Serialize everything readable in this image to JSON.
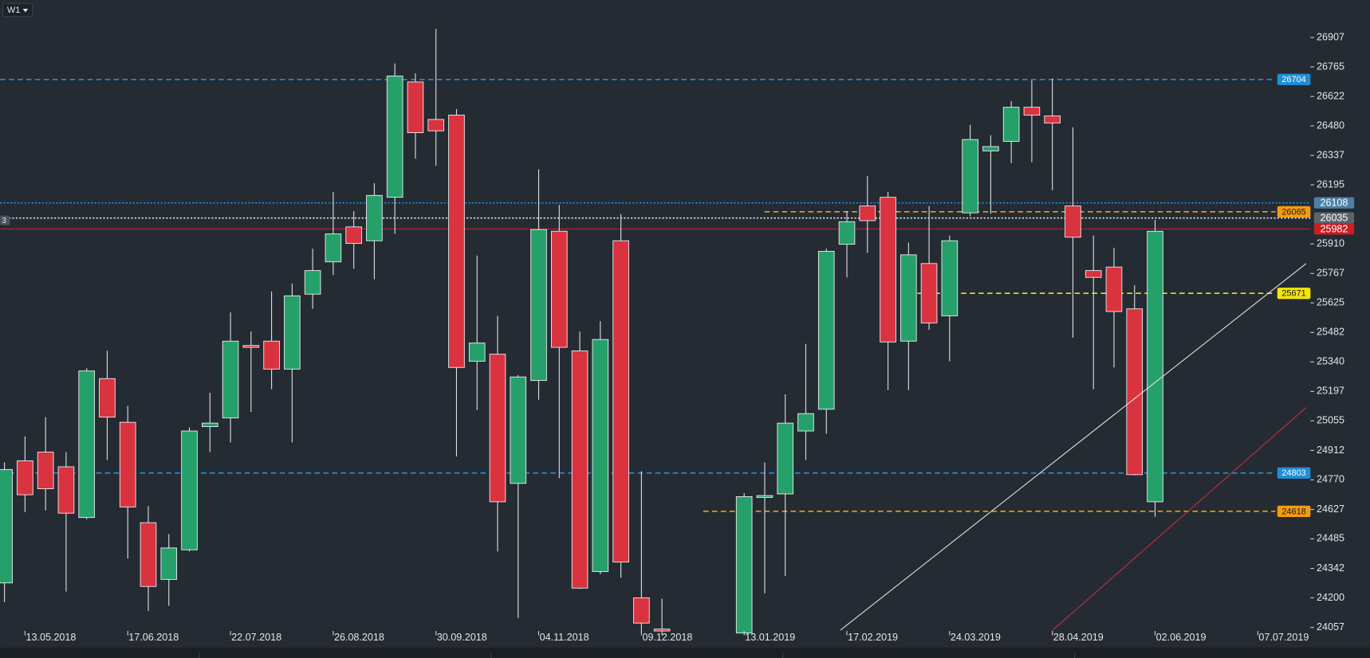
{
  "timeframe": "W1",
  "left_marker": "3",
  "chart_data": {
    "type": "candlestick",
    "categories": [
      null,
      "13.05.2018",
      null,
      null,
      null,
      null,
      "17.06.2018",
      null,
      null,
      null,
      null,
      "22.07.2018",
      null,
      null,
      null,
      null,
      "26.08.2018",
      null,
      null,
      null,
      null,
      "30.09.2018",
      null,
      null,
      null,
      null,
      "04.11.2018",
      null,
      null,
      null,
      null,
      "09.12.2018",
      null,
      null,
      null,
      null,
      "13.01.2019",
      null,
      null,
      null,
      null,
      "17.02.2019",
      null,
      null,
      null,
      null,
      "24.03.2019",
      null,
      null,
      null,
      null,
      "28.04.2019",
      null,
      null,
      null,
      null,
      "02.06.2019",
      null,
      null,
      null,
      null,
      "07.07.2019"
    ],
    "open": [
      24272,
      24862,
      24904,
      24833,
      24588,
      25259,
      25048,
      24563,
      24289,
      24432,
      25027,
      25069,
      25419,
      25440,
      25305,
      25667,
      25823,
      25992,
      25925,
      26135,
      26692,
      26511,
      26532,
      25343,
      25377,
      24753,
      25250,
      25971,
      25393,
      24327,
      25925,
      24200,
      24049,
      null,
      null,
      null,
      24030,
      24685,
      24702,
      25006,
      25111,
      25908,
      26093,
      26135,
      25440,
      25815,
      25562,
      26060,
      26359,
      26405,
      26570,
      26528,
      26093,
      25781,
      25798,
      25596,
      24664,
      null,
      null,
      null,
      null,
      null
    ],
    "high": [
      24854,
      24980,
      25073,
      24904,
      25309,
      25393,
      25128,
      24643,
      24508,
      25023,
      25191,
      25579,
      25486,
      25680,
      25718,
      25887,
      26161,
      26068,
      26203,
      26781,
      26734,
      26949,
      26561,
      25853,
      25562,
      25276,
      26270,
      26098,
      25486,
      25537,
      26055,
      24812,
      24196,
      null,
      null,
      null,
      24706,
      24854,
      25183,
      25427,
      25887,
      26068,
      26237,
      26161,
      25916,
      26093,
      25950,
      26485,
      26435,
      26599,
      26700,
      26709,
      26473,
      25950,
      25891,
      25710,
      26026,
      null,
      null,
      null,
      null,
      null
    ],
    "low": [
      24179,
      24614,
      24622,
      24230,
      24580,
      24866,
      24390,
      24137,
      24162,
      24424,
      24904,
      24951,
      25098,
      25208,
      24951,
      25596,
      25760,
      25790,
      25739,
      25958,
      26321,
      26287,
      24883,
      25107,
      24424,
      24103,
      25157,
      24778,
      24243,
      24314,
      24297,
      24032,
      24019,
      null,
      null,
      null,
      24030,
      24222,
      24306,
      24866,
      24993,
      25748,
      25866,
      25204,
      25204,
      25495,
      25343,
      26043,
      26055,
      26300,
      26304,
      26169,
      25457,
      25208,
      25313,
      24791,
      24592,
      null,
      null,
      null,
      null,
      null
    ],
    "close": [
      24820,
      24698,
      24727,
      24609,
      25296,
      25073,
      24639,
      24255,
      24441,
      25006,
      25044,
      25440,
      25410,
      25305,
      25659,
      25781,
      25958,
      25912,
      26144,
      26721,
      26447,
      26456,
      25313,
      25431,
      24664,
      25267,
      25979,
      25410,
      24247,
      25448,
      24373,
      24078,
      24040,
      null,
      null,
      null,
      24689,
      24694,
      25044,
      25090,
      25874,
      26017,
      26022,
      25436,
      25857,
      25528,
      25925,
      26414,
      26380,
      26570,
      26532,
      26494,
      25942,
      25748,
      25583,
      24795,
      25971,
      null,
      null,
      null,
      null,
      null
    ],
    "up_color": "#26a06a",
    "down_color": "#d9333f",
    "ylim": [
      24019,
      27088
    ],
    "yticks": [
      26907,
      26765,
      26622,
      26480,
      26337,
      26195,
      25910,
      25767,
      25625,
      25482,
      25340,
      25197,
      25055,
      24912,
      24770,
      24627,
      24485,
      24342,
      24200,
      24057
    ],
    "levels": [
      {
        "value": 26704,
        "color": "#1f8fd6",
        "style": "dashed"
      },
      {
        "value": 26108,
        "color": "#1f8fd6",
        "style": "dotted"
      },
      {
        "value": 26065,
        "color": "#f39c12",
        "style": "dashed"
      },
      {
        "value": 26035,
        "color": "#e6e6e6",
        "style": "dotted"
      },
      {
        "value": 25982,
        "color": "#c81e24",
        "style": "solid"
      },
      {
        "value": 25671,
        "color": "#f1e40f",
        "style": "dashed"
      },
      {
        "value": 24803,
        "color": "#1f8fd6",
        "style": "dashed"
      },
      {
        "value": 24618,
        "color": "#f39c12",
        "style": "dashed"
      }
    ]
  }
}
